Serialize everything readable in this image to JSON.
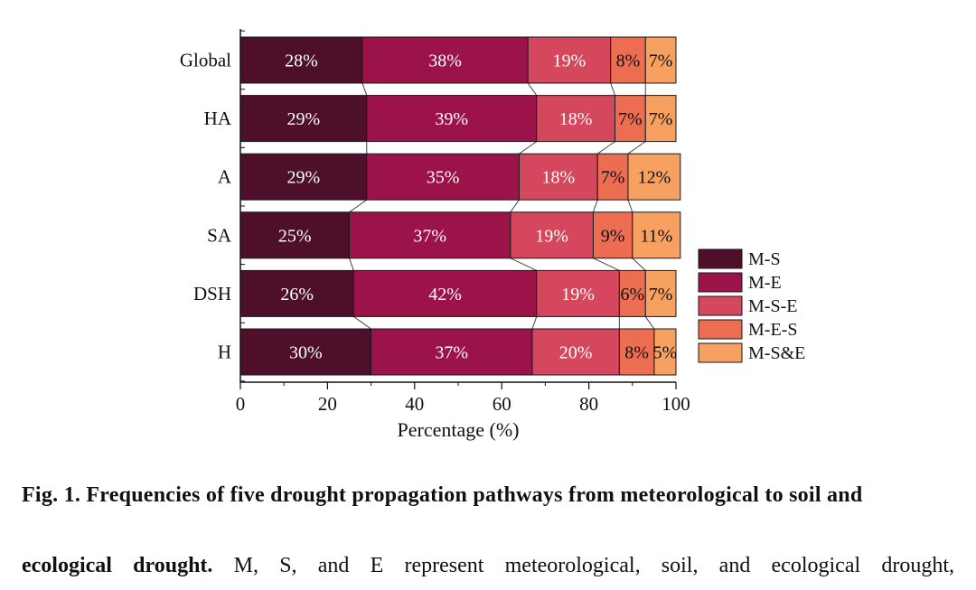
{
  "chart_data": {
    "type": "bar",
    "orientation": "horizontal",
    "stacked": true,
    "categories": [
      "Global",
      "HA",
      "A",
      "SA",
      "DSH",
      "H"
    ],
    "series": [
      {
        "name": "M-S",
        "color": "#4d0f2a",
        "values": [
          28,
          29,
          29,
          25,
          26,
          30
        ],
        "labels": [
          "28%",
          "29%",
          "29%",
          "25%",
          "26%",
          "30%"
        ]
      },
      {
        "name": "M-E",
        "color": "#9b1348",
        "values": [
          38,
          39,
          35,
          37,
          42,
          37
        ],
        "labels": [
          "38%",
          "39%",
          "35%",
          "37%",
          "42%",
          "37%"
        ]
      },
      {
        "name": "M-S-E",
        "color": "#d4475c",
        "values": [
          19,
          18,
          18,
          19,
          19,
          20
        ],
        "labels": [
          "19%",
          "18%",
          "18%",
          "19%",
          "19%",
          "20%"
        ]
      },
      {
        "name": "M-E-S",
        "color": "#ec6d52",
        "values": [
          8,
          7,
          7,
          9,
          6,
          8
        ],
        "labels": [
          "8%",
          "7%",
          "7%",
          "9%",
          "6%",
          "8%"
        ]
      },
      {
        "name": "M-S&E",
        "color": "#f6a061",
        "values": [
          7,
          7,
          12,
          11,
          7,
          5
        ],
        "labels": [
          "7%",
          "7%",
          "12%",
          "11%",
          "7%",
          "5%"
        ]
      }
    ],
    "xlabel": "Percentage (%)",
    "ylabel": "",
    "xlim": [
      0,
      100
    ],
    "xticks": [
      0,
      20,
      40,
      60,
      80,
      100
    ],
    "legend_position": "right"
  },
  "caption": {
    "line1": "Fig. 1. Frequencies of five drought propagation pathways from meteorological to soil and",
    "line2_bold": "ecological drought.",
    "line2_rest": " M, S, and E represent meteorological, soil, and ecological drought,"
  }
}
